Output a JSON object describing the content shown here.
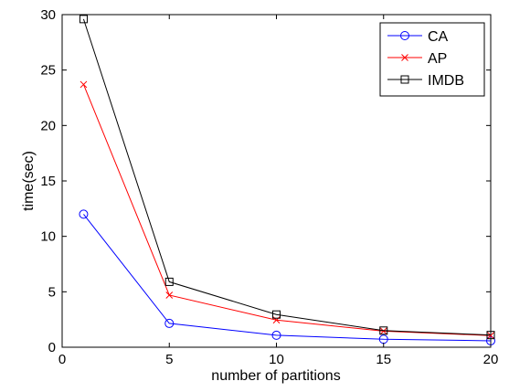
{
  "chart_data": {
    "type": "line",
    "title": "",
    "xlabel": "number of partitions",
    "ylabel": "time(sec)",
    "xlim": [
      0,
      20
    ],
    "ylim": [
      0,
      30
    ],
    "xticks": [
      0,
      5,
      10,
      15,
      20
    ],
    "yticks": [
      0,
      5,
      10,
      15,
      20,
      25,
      30
    ],
    "grid": false,
    "legend_position": "top-right",
    "x": [
      1,
      5,
      10,
      15,
      20
    ],
    "series": [
      {
        "name": "CA",
        "color": "#0000ff",
        "marker": "circle",
        "values": [
          12.0,
          2.15,
          1.08,
          0.72,
          0.58
        ]
      },
      {
        "name": "AP",
        "color": "#ff0000",
        "marker": "x",
        "values": [
          23.7,
          4.7,
          2.45,
          1.45,
          1.05
        ]
      },
      {
        "name": "IMDB",
        "color": "#000000",
        "marker": "square",
        "values": [
          29.6,
          5.9,
          2.95,
          1.5,
          1.1
        ]
      }
    ]
  }
}
